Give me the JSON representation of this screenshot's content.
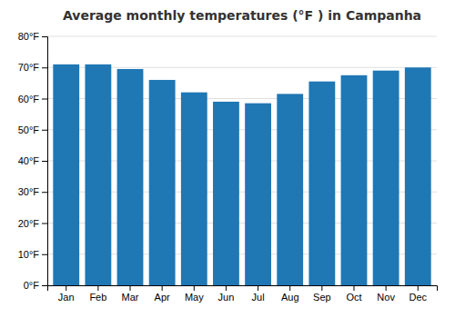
{
  "chart_data": {
    "type": "bar",
    "title": "Average monthly temperatures (°F ) in Campanha",
    "categories": [
      "Jan",
      "Feb",
      "Mar",
      "Apr",
      "May",
      "Jun",
      "Jul",
      "Aug",
      "Sep",
      "Oct",
      "Nov",
      "Dec"
    ],
    "values": [
      71,
      71,
      69.5,
      66,
      62,
      59,
      58.5,
      61.5,
      65.5,
      67.5,
      69,
      70
    ],
    "ylim": [
      0,
      80
    ],
    "yticks": [
      {
        "value": 0,
        "label": "0°F"
      },
      {
        "value": 10,
        "label": "10°F"
      },
      {
        "value": 20,
        "label": "20°F"
      },
      {
        "value": 30,
        "label": "30°F"
      },
      {
        "value": 40,
        "label": "40°F"
      },
      {
        "value": 50,
        "label": "50°F"
      },
      {
        "value": 60,
        "label": "60°F"
      },
      {
        "value": 70,
        "label": "70°F"
      },
      {
        "value": 80,
        "label": "80°F"
      }
    ],
    "grid": true
  }
}
